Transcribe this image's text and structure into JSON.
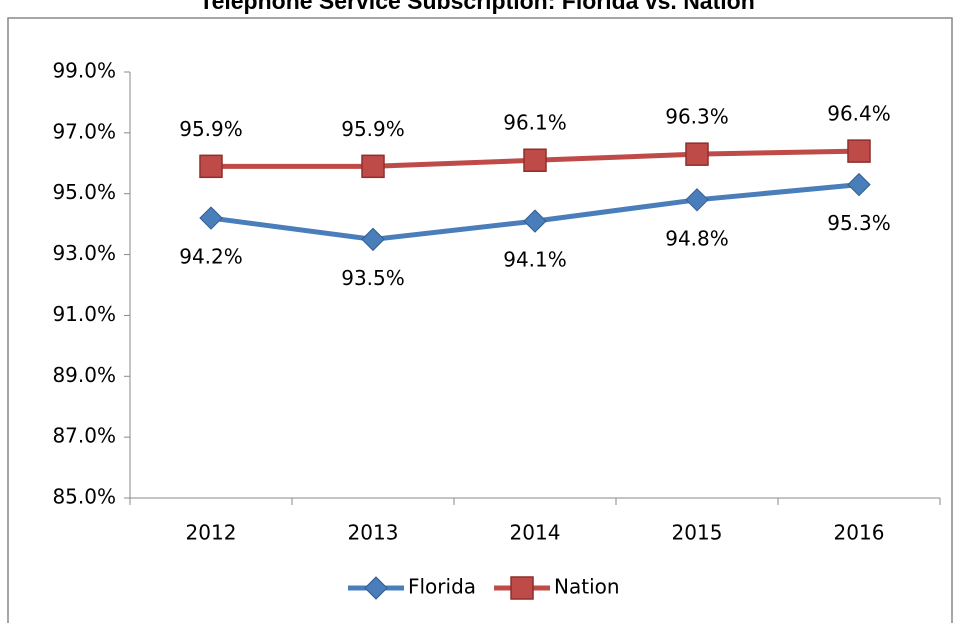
{
  "chart_data": {
    "type": "line",
    "title": "Telephone Service Subscription: Florida vs. Nation",
    "categories": [
      "2012",
      "2013",
      "2014",
      "2015",
      "2016"
    ],
    "series": [
      {
        "name": "Florida",
        "color": "#4a7ebb",
        "values": [
          94.2,
          93.5,
          94.1,
          94.8,
          95.3
        ],
        "value_labels": [
          "94.2%",
          "93.5%",
          "94.1%",
          "94.8%",
          "95.3%"
        ]
      },
      {
        "name": "Nation",
        "color": "#be4b48",
        "values": [
          95.9,
          95.9,
          96.1,
          96.3,
          96.4
        ],
        "value_labels": [
          "95.9%",
          "95.9%",
          "96.1%",
          "96.3%",
          "96.4%"
        ]
      }
    ],
    "ylim": [
      85,
      99
    ],
    "yticks": [
      {
        "value": 85,
        "label": "85.0%"
      },
      {
        "value": 87,
        "label": "87.0%"
      },
      {
        "value": 89,
        "label": "89.0%"
      },
      {
        "value": 91,
        "label": "91.0%"
      },
      {
        "value": 93,
        "label": "93.0%"
      },
      {
        "value": 95,
        "label": "95.0%"
      },
      {
        "value": 97,
        "label": "97.0%"
      },
      {
        "value": 99,
        "label": "99.0%"
      }
    ],
    "legend": "bottom"
  }
}
